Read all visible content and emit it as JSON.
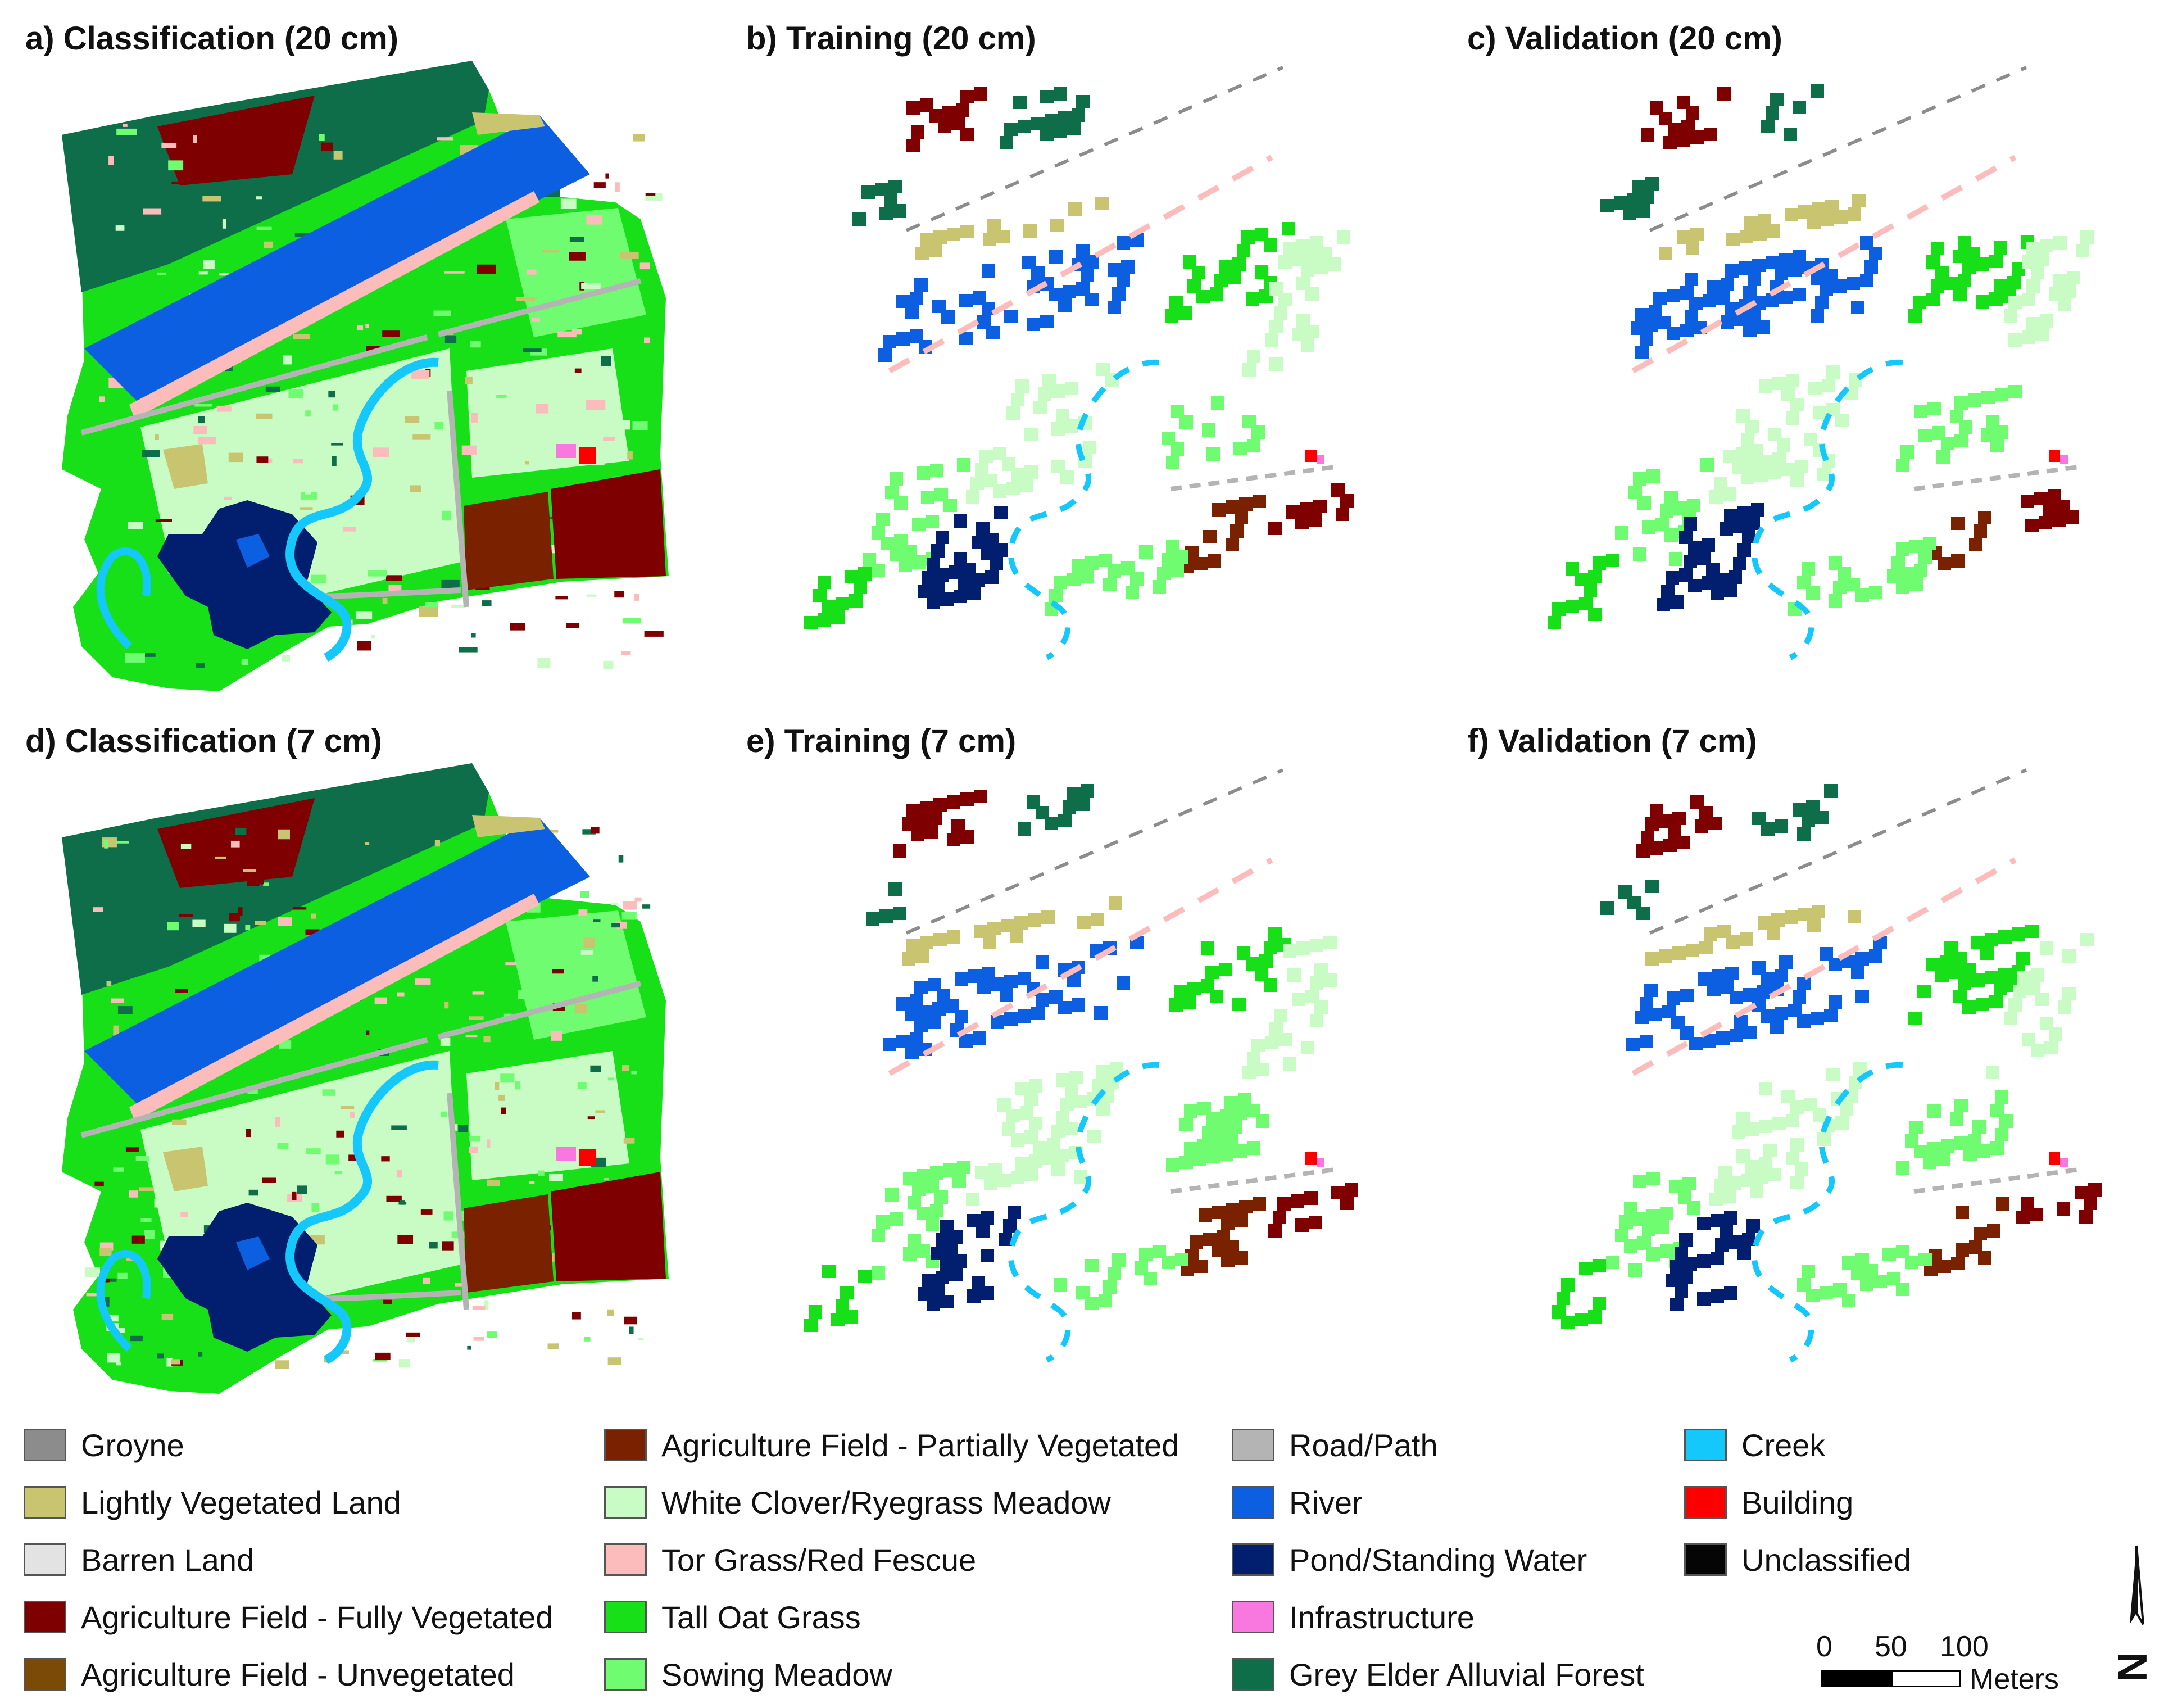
{
  "panels": [
    {
      "id": "a",
      "title": "a) Classification (20 cm)",
      "kind": "classification"
    },
    {
      "id": "b",
      "title": "b) Training (20 cm)",
      "kind": "training"
    },
    {
      "id": "c",
      "title": "c) Validation (20 cm)",
      "kind": "validation"
    },
    {
      "id": "d",
      "title": "d) Classification (7 cm)",
      "kind": "classification"
    },
    {
      "id": "e",
      "title": "e) Training (7 cm)",
      "kind": "training"
    },
    {
      "id": "f",
      "title": "f) Validation (7 cm)",
      "kind": "validation"
    }
  ],
  "legend": {
    "columns": [
      [
        {
          "label": "Groyne",
          "color": "#8c8c8c"
        },
        {
          "label": "Lightly Vegetated Land",
          "color": "#c9c46f"
        },
        {
          "label": "Barren Land",
          "color": "#e3e3e3"
        },
        {
          "label": "Agriculture Field - Fully Vegetated",
          "color": "#7f0000"
        },
        {
          "label": "Agriculture Field - Unvegetated",
          "color": "#7a4a06"
        }
      ],
      [
        {
          "label": "Agriculture Field - Partially Vegetated",
          "color": "#7a2200"
        },
        {
          "label": "White Clover/Ryegrass Meadow",
          "color": "#c8fcc4"
        },
        {
          "label": "Tor Grass/Red Fescue",
          "color": "#fcbcbc"
        },
        {
          "label": "Tall Oat Grass",
          "color": "#18e018"
        },
        {
          "label": "Sowing Meadow",
          "color": "#70fc70"
        }
      ],
      [
        {
          "label": "Road/Path",
          "color": "#b4b4b4"
        },
        {
          "label": "River",
          "color": "#0c5fe0"
        },
        {
          "label": "Pond/Standing Water",
          "color": "#021e6e"
        },
        {
          "label": "Infrastructure",
          "color": "#f878e0"
        },
        {
          "label": "Grey Elder Alluvial Forest",
          "color": "#0e6e4a"
        }
      ],
      [
        {
          "label": "Creek",
          "color": "#14c8fc"
        },
        {
          "label": "Building",
          "color": "#fc0000"
        },
        {
          "label": "Unclassified",
          "color": "#050505"
        }
      ]
    ]
  },
  "scalebar": {
    "ticks": [
      "0",
      "50",
      "100"
    ],
    "units": "Meters"
  },
  "north_arrow": {
    "label": "N"
  }
}
